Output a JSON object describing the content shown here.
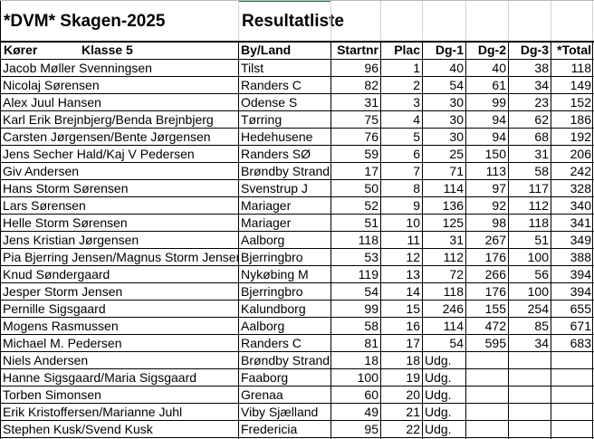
{
  "title": "*DVM*  Skagen-2025",
  "subtitle": "Resultatliste",
  "accent_color": "#217346",
  "header": {
    "driver": "Kører",
    "class": "Klasse  5",
    "city": "By/Land",
    "startnr": "Startnr",
    "plac": "Plac",
    "dg1": "Dg-1",
    "dg2": "Dg-2",
    "dg3": "Dg-3",
    "total": "*Total"
  },
  "rows": [
    {
      "name": "Jacob Møller Svenningsen",
      "city": "Tilst",
      "startnr": "96",
      "plac": "1",
      "dg1": "40",
      "dg2": "40",
      "dg3": "38",
      "total": "118"
    },
    {
      "name": "Nicolaj Sørensen",
      "city": "Randers C",
      "startnr": "82",
      "plac": "2",
      "dg1": "54",
      "dg2": "61",
      "dg3": "34",
      "total": "149"
    },
    {
      "name": "Alex Juul Hansen",
      "city": "Odense S",
      "startnr": "31",
      "plac": "3",
      "dg1": "30",
      "dg2": "99",
      "dg3": "23",
      "total": "152"
    },
    {
      "name": "Karl Erik Brejnbjerg/Benda Brejnbjerg",
      "city": "Tørring",
      "startnr": "75",
      "plac": "4",
      "dg1": "30",
      "dg2": "94",
      "dg3": "62",
      "total": "186"
    },
    {
      "name": "Carsten Jørgensen/Bente Jørgensen",
      "city": "Hedehusene",
      "startnr": "76",
      "plac": "5",
      "dg1": "30",
      "dg2": "94",
      "dg3": "68",
      "total": "192"
    },
    {
      "name": "Jens Secher Hald/Kaj V Pedersen",
      "city": "Randers SØ",
      "startnr": "59",
      "plac": "6",
      "dg1": "25",
      "dg2": "150",
      "dg3": "31",
      "total": "206"
    },
    {
      "name": "Giv Andersen",
      "city": "Brøndby Strand",
      "startnr": "17",
      "plac": "7",
      "dg1": "71",
      "dg2": "113",
      "dg3": "58",
      "total": "242"
    },
    {
      "name": "Hans Storm Sørensen",
      "city": "Svenstrup J",
      "startnr": "50",
      "plac": "8",
      "dg1": "114",
      "dg2": "97",
      "dg3": "117",
      "total": "328"
    },
    {
      "name": "Lars Sørensen",
      "city": "Mariager",
      "startnr": "52",
      "plac": "9",
      "dg1": "136",
      "dg2": "92",
      "dg3": "112",
      "total": "340"
    },
    {
      "name": "Helle Storm Sørensen",
      "city": "Mariager",
      "startnr": "51",
      "plac": "10",
      "dg1": "125",
      "dg2": "98",
      "dg3": "118",
      "total": "341"
    },
    {
      "name": "Jens Kristian Jørgensen",
      "city": "Aalborg",
      "startnr": "118",
      "plac": "11",
      "dg1": "31",
      "dg2": "267",
      "dg3": "51",
      "total": "349"
    },
    {
      "name": "Pia Bjerring Jensen/Magnus Storm Jensen",
      "city": "Bjerringbro",
      "startnr": "53",
      "plac": "12",
      "dg1": "112",
      "dg2": "176",
      "dg3": "100",
      "total": "388"
    },
    {
      "name": "Knud Søndergaard",
      "city": "Nykøbing M",
      "startnr": "119",
      "plac": "13",
      "dg1": "72",
      "dg2": "266",
      "dg3": "56",
      "total": "394"
    },
    {
      "name": "Jesper Storm Jensen",
      "city": "Bjerringbro",
      "startnr": "54",
      "plac": "14",
      "dg1": "118",
      "dg2": "176",
      "dg3": "100",
      "total": "394"
    },
    {
      "name": "Pernille  Sigsgaard",
      "city": "Kalundborg",
      "startnr": "99",
      "plac": "15",
      "dg1": "246",
      "dg2": "155",
      "dg3": "254",
      "total": "655"
    },
    {
      "name": "Mogens Rasmussen",
      "city": "Aalborg",
      "startnr": "58",
      "plac": "16",
      "dg1": "114",
      "dg2": "472",
      "dg3": "85",
      "total": "671"
    },
    {
      "name": "Michael M. Pedersen",
      "city": "Randers C",
      "startnr": "81",
      "plac": "17",
      "dg1": "54",
      "dg2": "595",
      "dg3": "34",
      "total": "683"
    },
    {
      "name": "Niels Andersen",
      "city": "Brøndby Strand",
      "startnr": "18",
      "plac": "18",
      "dg1": "Udg.",
      "dg2": "",
      "dg3": "",
      "total": ""
    },
    {
      "name": "Hanne Sigsgaard/Maria Sigsgaard",
      "city": "Faaborg",
      "startnr": "100",
      "plac": "19",
      "dg1": "Udg.",
      "dg2": "",
      "dg3": "",
      "total": ""
    },
    {
      "name": "Torben  Simonsen",
      "city": "Grenaa",
      "startnr": "60",
      "plac": "20",
      "dg1": "Udg.",
      "dg2": "",
      "dg3": "",
      "total": ""
    },
    {
      "name": "Erik Kristoffersen/Marianne Juhl",
      "city": "Viby Sjælland",
      "startnr": "49",
      "plac": "21",
      "dg1": "Udg.",
      "dg2": "",
      "dg3": "",
      "total": ""
    },
    {
      "name": "Stephen Kusk/Svend Kusk",
      "city": "Fredericia",
      "startnr": "95",
      "plac": "22",
      "dg1": "Udg.",
      "dg2": "",
      "dg3": "",
      "total": ""
    }
  ]
}
